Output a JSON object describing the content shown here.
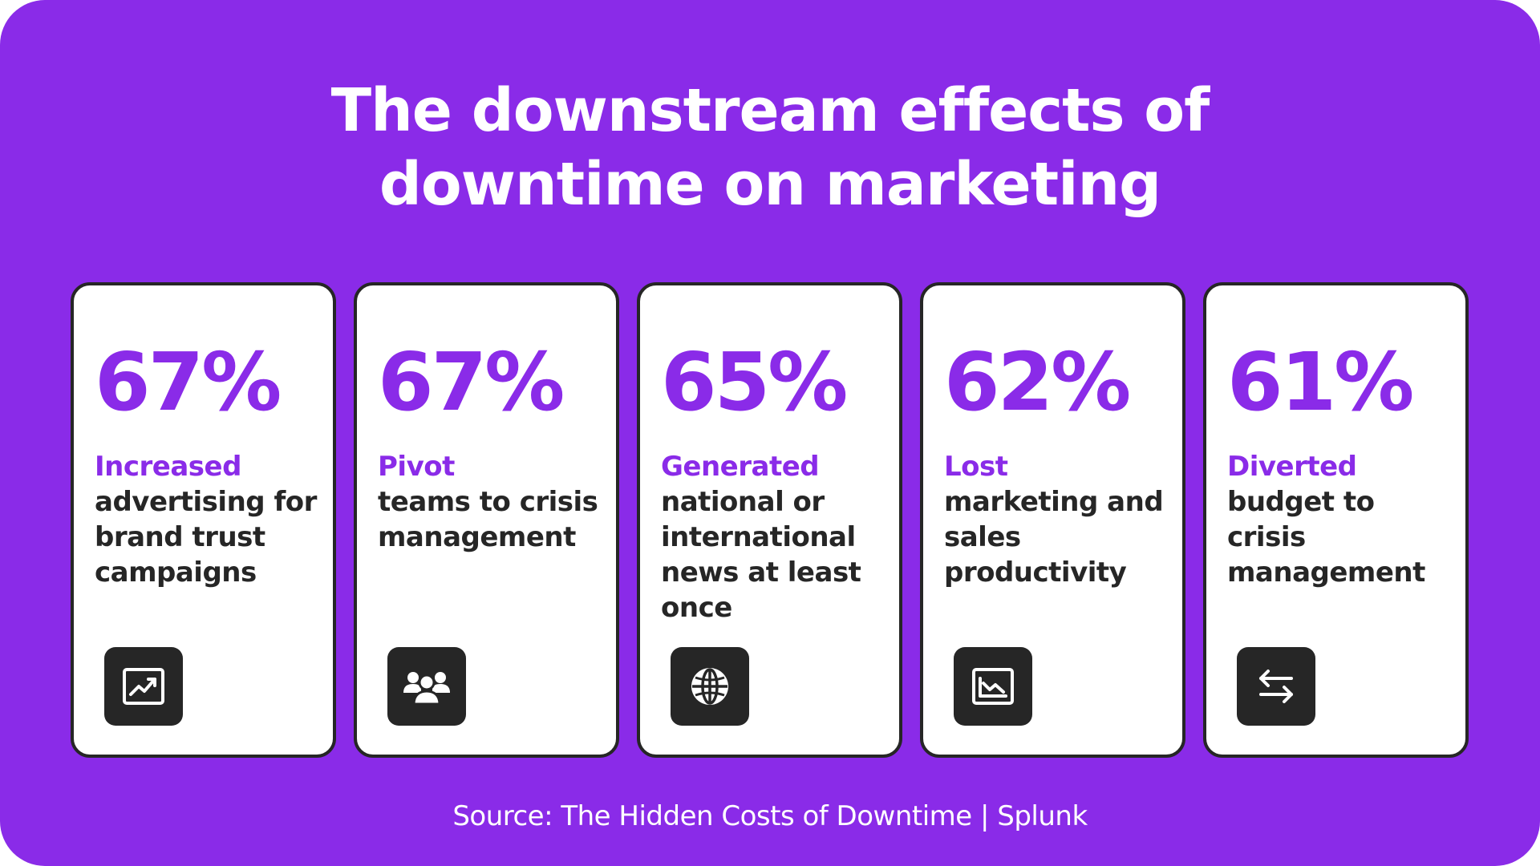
{
  "title": {
    "line1": "The downstream effects of",
    "line2": "downtime on marketing"
  },
  "cards": [
    {
      "percent": "67%",
      "verb": "Increased",
      "rest": "advertising for brand trust campaigns",
      "icon": "trending-up-chart-icon"
    },
    {
      "percent": "67%",
      "verb": "Pivot",
      "rest": "teams to crisis management",
      "icon": "team-people-icon"
    },
    {
      "percent": "65%",
      "verb": "Generated",
      "rest": "national or international news at least once",
      "icon": "globe-icon"
    },
    {
      "percent": "62%",
      "verb": "Lost",
      "rest": "marketing and sales productivity",
      "icon": "trending-down-chart-icon"
    },
    {
      "percent": "61%",
      "verb": "Diverted",
      "rest": "budget to crisis management",
      "icon": "swap-arrows-icon"
    }
  ],
  "source": "Source: The Hidden Costs of Downtime | Splunk",
  "colors": {
    "background": "#8a2be8",
    "accent": "#8a2be8",
    "card": "#ffffff",
    "text_dark": "#262626",
    "icon_tile": "#262626"
  }
}
